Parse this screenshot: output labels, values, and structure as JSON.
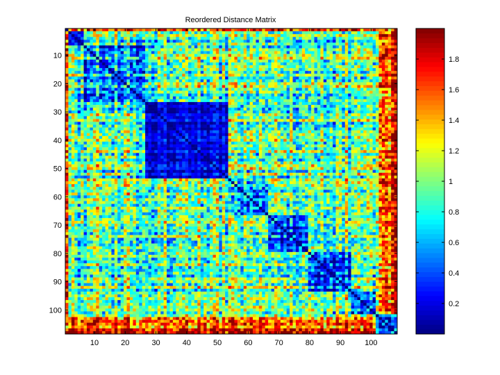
{
  "chart_data": {
    "type": "heatmap",
    "title": "Reordered Distance Matrix",
    "xlabel": "",
    "ylabel": "",
    "size": 108,
    "x_range": [
      0.5,
      108.5
    ],
    "y_range": [
      108.5,
      0.5
    ],
    "x_ticks": [
      10,
      20,
      30,
      40,
      50,
      60,
      70,
      80,
      90,
      100
    ],
    "y_ticks": [
      10,
      20,
      30,
      40,
      50,
      60,
      70,
      80,
      90,
      100
    ],
    "x_tick_labels": [
      "10",
      "20",
      "30",
      "40",
      "50",
      "60",
      "70",
      "80",
      "90",
      "100"
    ],
    "y_tick_labels": [
      "10",
      "20",
      "30",
      "40",
      "50",
      "60",
      "70",
      "80",
      "90",
      "100"
    ],
    "colormap": "jet",
    "colorbar": {
      "range": [
        0,
        2
      ],
      "ticks": [
        0.2,
        0.4,
        0.6,
        0.8,
        1,
        1.2,
        1.4,
        1.6,
        1.8
      ],
      "tick_labels": [
        "0.2",
        "0.4",
        "0.6",
        "0.8",
        "1",
        "1.2",
        "1.4",
        "1.6",
        "1.8"
      ]
    },
    "clusters": [
      {
        "range": [
          1,
          6
        ],
        "within_distance": 0.35
      },
      {
        "range": [
          7,
          26
        ],
        "within_distance": 0.55
      },
      {
        "range": [
          27,
          53
        ],
        "within_distance": 0.22
      },
      {
        "range": [
          54,
          66
        ],
        "within_distance": 0.5
      },
      {
        "range": [
          67,
          79
        ],
        "within_distance": 0.45
      },
      {
        "range": [
          80,
          93
        ],
        "within_distance": 0.42
      },
      {
        "range": [
          94,
          101
        ],
        "within_distance": 0.4
      },
      {
        "range": [
          102,
          108
        ],
        "within_distance": 0.55
      }
    ],
    "between_cluster_distance": 0.95,
    "outlier_rows": [
      1,
      103,
      104,
      105,
      106,
      107,
      108
    ],
    "outlier_distance": 1.7,
    "grid": false
  }
}
